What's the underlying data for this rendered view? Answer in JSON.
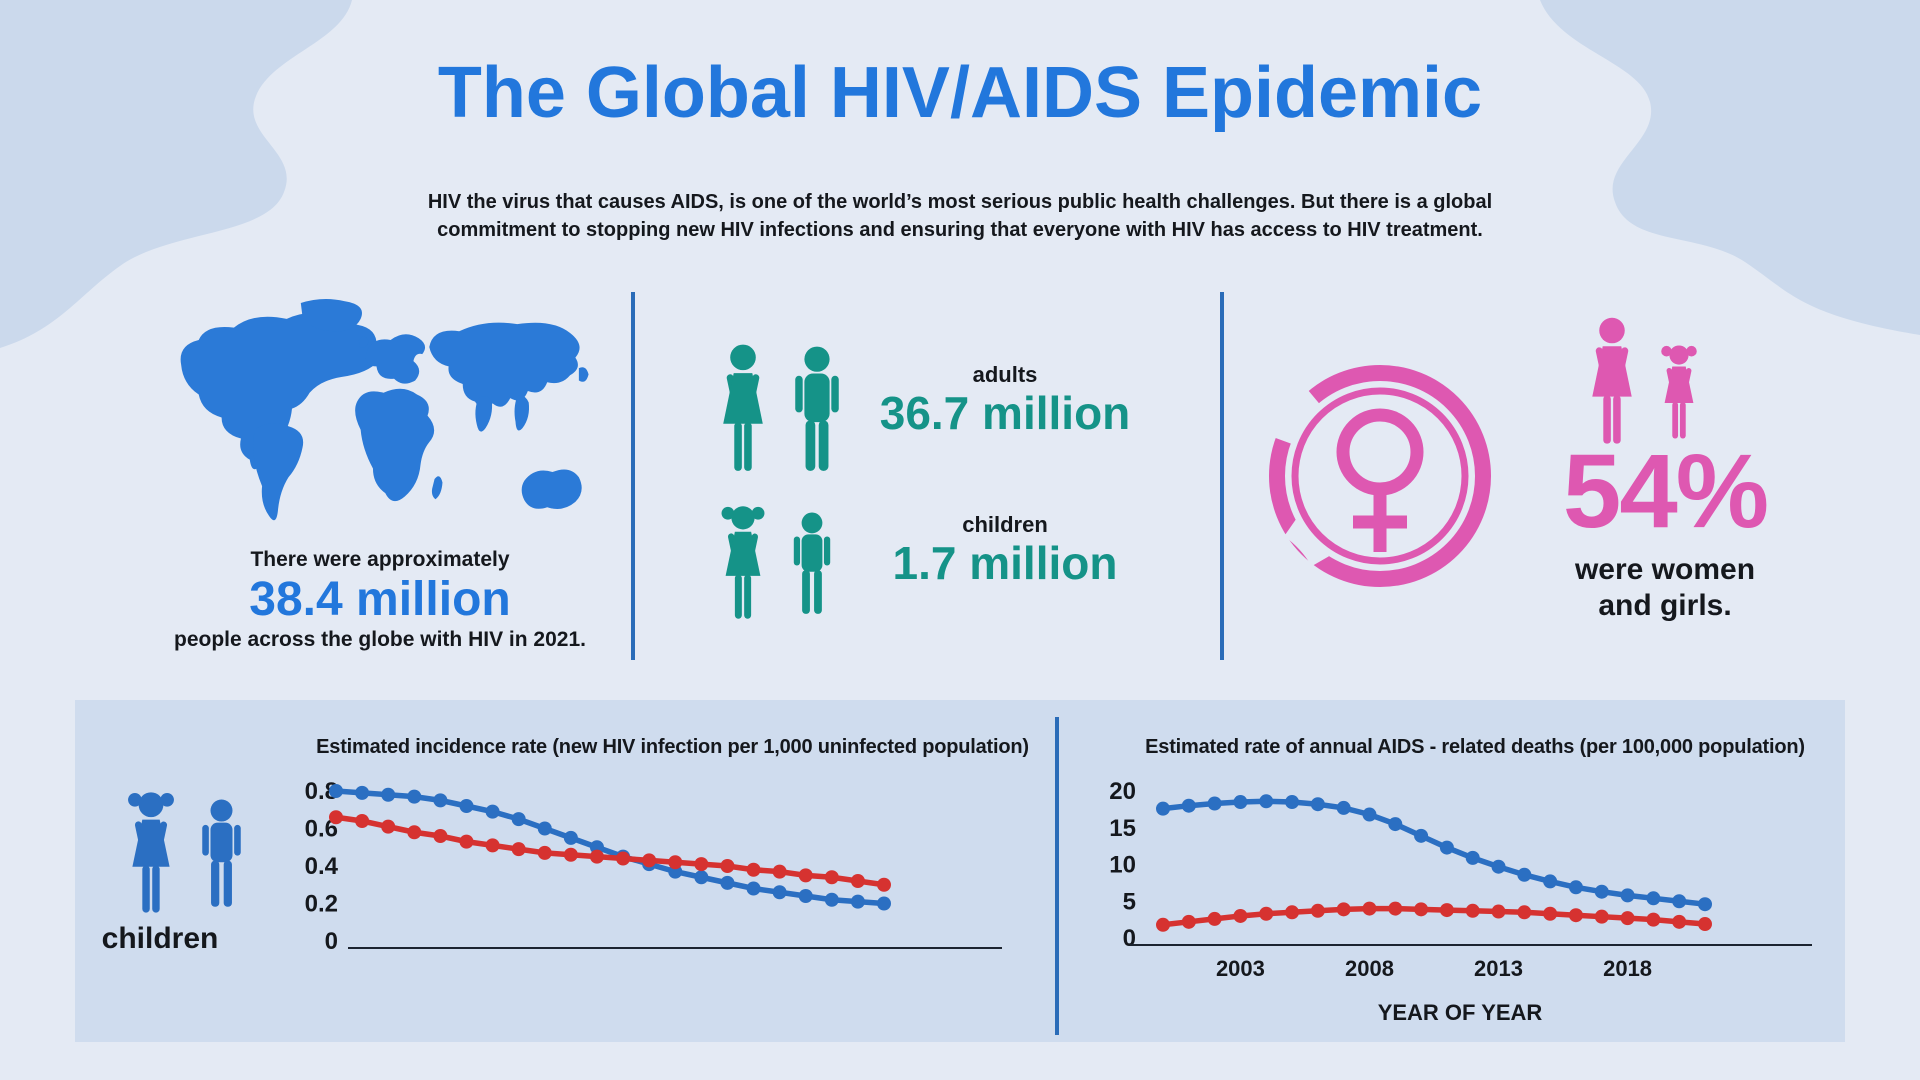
{
  "header": {
    "title": "The Global HIV/AIDS Epidemic",
    "subtitle_line1": "HIV the virus that causes AIDS, is one of the world’s most serious public health challenges. But there is a global",
    "subtitle_line2": "commitment to stopping new HIV infections and ensuring that everyone with HIV has access to HIV treatment."
  },
  "global_stat": {
    "intro": "There were approximately",
    "value": "38.4 million",
    "caption": "people across the globe with HIV in 2021."
  },
  "people_stats": {
    "adults_label": "adults",
    "adults_value": "36.7 million",
    "children_label": "children",
    "children_value": "1.7 million"
  },
  "women_stat": {
    "percent": "54%",
    "caption_line1": "were women",
    "caption_line2": "and girls."
  },
  "charts_panel": {
    "left_legend": "children"
  },
  "chart_data": [
    {
      "type": "line",
      "title": "Estimated incidence rate (new HIV infection per 1,000 uninfected population)",
      "legend": "children",
      "y_ticks": [
        "0.8",
        "0.6",
        "0.4",
        "0.2",
        "0"
      ],
      "ylim": [
        0,
        0.8
      ],
      "grid": false,
      "x_ticks": [],
      "series": [
        {
          "name": "blue",
          "color": "#2b6fc2",
          "values": [
            0.8,
            0.79,
            0.78,
            0.77,
            0.75,
            0.72,
            0.69,
            0.65,
            0.6,
            0.55,
            0.5,
            0.45,
            0.41,
            0.37,
            0.34,
            0.31,
            0.28,
            0.26,
            0.24,
            0.22,
            0.21,
            0.2
          ]
        },
        {
          "name": "red",
          "color": "#d63230",
          "values": [
            0.66,
            0.64,
            0.61,
            0.58,
            0.56,
            0.53,
            0.51,
            0.49,
            0.47,
            0.46,
            0.45,
            0.44,
            0.43,
            0.42,
            0.41,
            0.4,
            0.38,
            0.37,
            0.35,
            0.34,
            0.32,
            0.3
          ]
        }
      ]
    },
    {
      "type": "line",
      "title": "Estimated rate of annual AIDS - related deaths (per 100,000 population)",
      "xlabel": "YEAR OF YEAR",
      "y_ticks": [
        "20",
        "15",
        "10",
        "5",
        "0"
      ],
      "ylim": [
        0,
        20
      ],
      "grid": false,
      "x_ticks": [
        "2003",
        "2008",
        "2013",
        "2018"
      ],
      "series": [
        {
          "name": "blue",
          "color": "#2b6fc2",
          "values": [
            17.6,
            18.0,
            18.3,
            18.5,
            18.6,
            18.5,
            18.2,
            17.7,
            16.8,
            15.5,
            13.9,
            12.3,
            10.9,
            9.7,
            8.6,
            7.7,
            6.9,
            6.3,
            5.8,
            5.4,
            5.0,
            4.6
          ]
        },
        {
          "name": "red",
          "color": "#d63230",
          "values": [
            1.8,
            2.2,
            2.6,
            3.0,
            3.3,
            3.5,
            3.7,
            3.9,
            4.0,
            4.0,
            3.9,
            3.8,
            3.7,
            3.6,
            3.5,
            3.3,
            3.1,
            2.9,
            2.7,
            2.5,
            2.2,
            1.9
          ]
        }
      ]
    }
  ],
  "colors": {
    "background": "#e4eaf4",
    "corner_blob": "#cbd9ec",
    "panel": "#cfdcee",
    "accent_blue": "#2277dc",
    "map_blue": "#2b7ad7",
    "teal": "#159388",
    "pink": "#de58b1",
    "line_blue": "#2b6fc2",
    "line_red": "#d63230",
    "divider": "#2a6cb8",
    "text": "#15181d",
    "axis": "#1c2430"
  }
}
